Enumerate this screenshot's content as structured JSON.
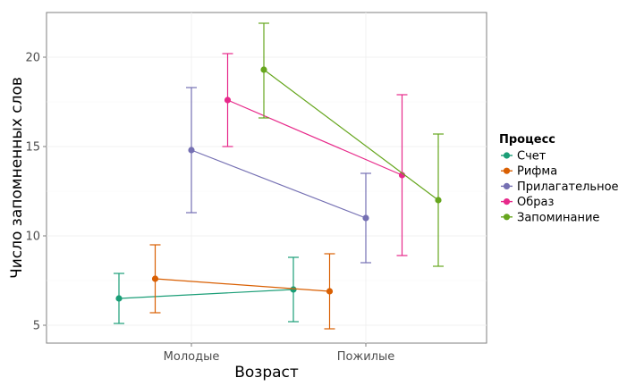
{
  "chart_data": {
    "type": "line",
    "xlabel": "Возраст",
    "ylabel": "Число запомненных слов",
    "categories": [
      "Молодые",
      "Пожилые"
    ],
    "y_ticks": [
      5,
      10,
      15,
      20
    ],
    "ylim": [
      4.0,
      22.5
    ],
    "grid": true,
    "legend": {
      "title": "Процесс",
      "placement": "right"
    },
    "series": [
      {
        "name": "Счет",
        "color": "#1b9e77",
        "values": [
          6.5,
          7.0
        ],
        "lower": [
          5.1,
          5.2
        ],
        "upper": [
          7.9,
          8.8
        ]
      },
      {
        "name": "Рифма",
        "color": "#d95f02",
        "values": [
          7.6,
          6.9
        ],
        "lower": [
          5.7,
          4.8
        ],
        "upper": [
          9.5,
          9.0
        ]
      },
      {
        "name": "Прилагательное",
        "color": "#7570b3",
        "values": [
          14.8,
          11.0
        ],
        "lower": [
          11.3,
          8.5
        ],
        "upper": [
          18.3,
          13.5
        ]
      },
      {
        "name": "Образ",
        "color": "#e7298a",
        "values": [
          17.6,
          13.4
        ],
        "lower": [
          15.0,
          8.9
        ],
        "upper": [
          20.2,
          17.9
        ]
      },
      {
        "name": "Запоминание",
        "color": "#66a61e",
        "values": [
          19.3,
          12.0
        ],
        "lower": [
          16.6,
          8.3
        ],
        "upper": [
          21.9,
          15.7
        ]
      }
    ]
  }
}
